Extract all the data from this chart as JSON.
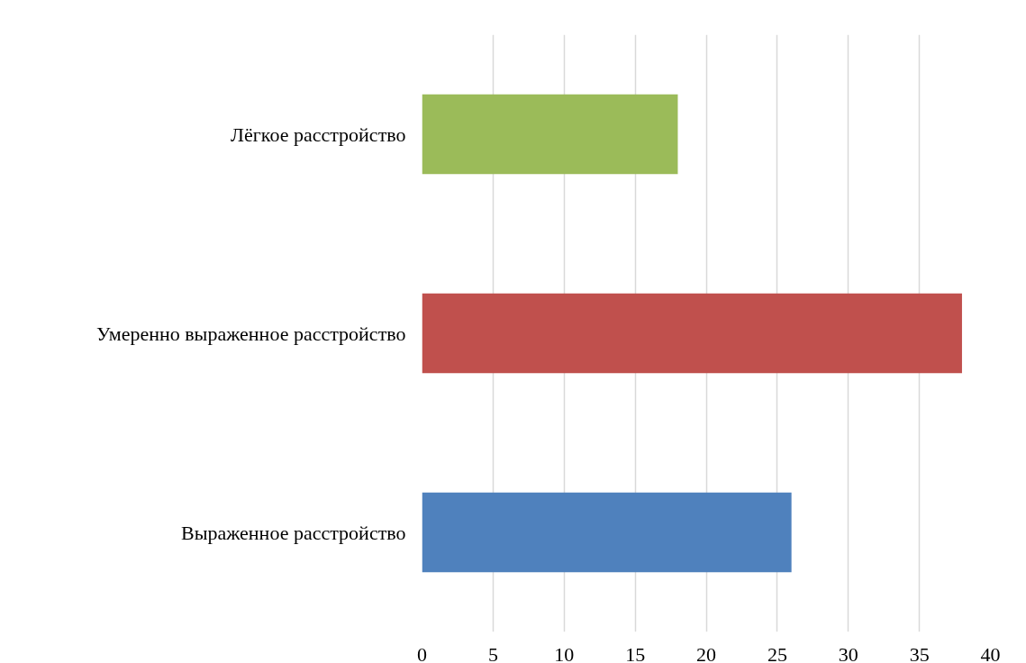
{
  "chart_data": {
    "type": "bar",
    "orientation": "horizontal",
    "categories": [
      "Лёгкое расстройство",
      "Умеренно выраженное расстройство",
      "Выраженное расстройство"
    ],
    "values": [
      18,
      38,
      26
    ],
    "colors": [
      "#9bbb59",
      "#c0504d",
      "#4f81bd"
    ],
    "xlim": [
      0,
      40
    ],
    "xticks": [
      0,
      5,
      10,
      15,
      20,
      25,
      30,
      35,
      40
    ],
    "grid": "x"
  }
}
